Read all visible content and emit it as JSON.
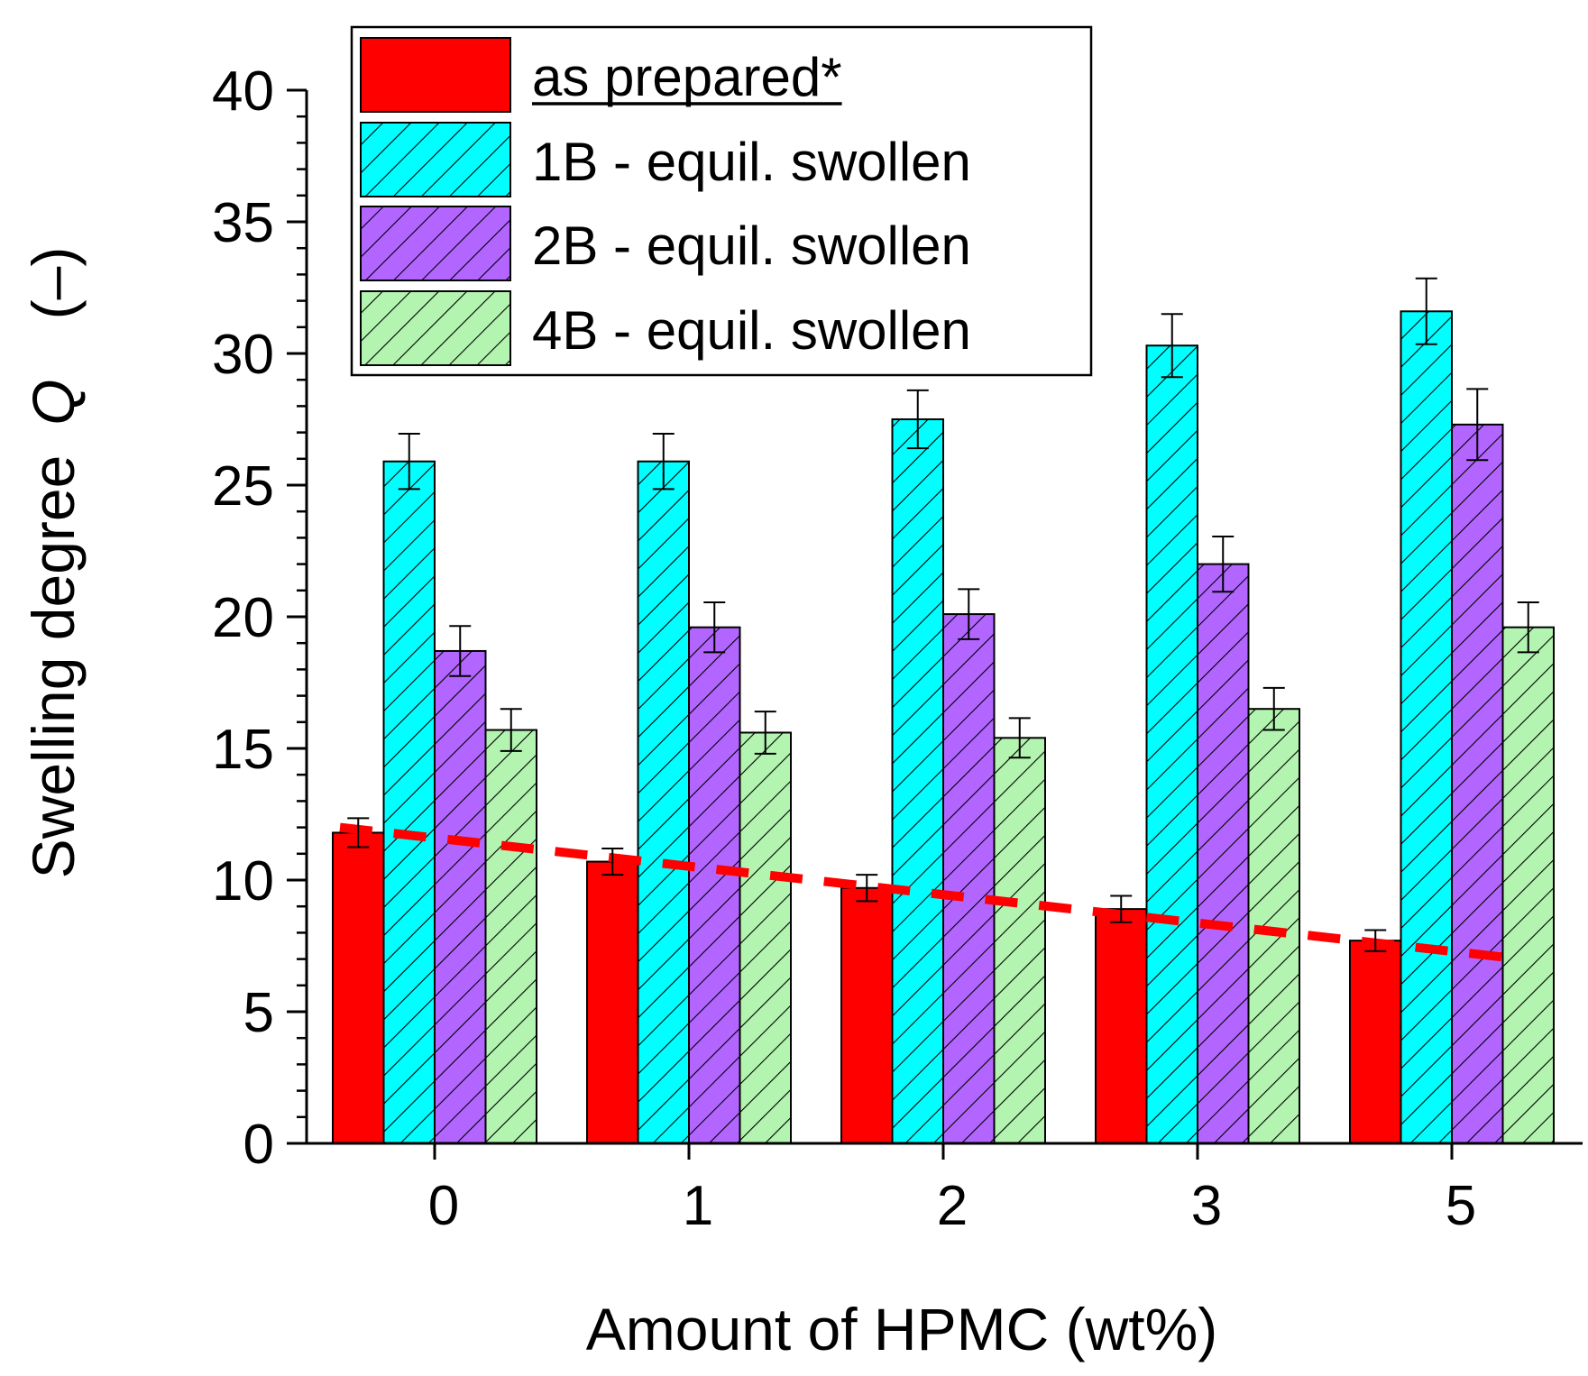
{
  "chart_data": {
    "type": "bar",
    "title": "",
    "xlabel": "Amount of HPMC (wt%)",
    "ylabel": "Swelling degree",
    "ylabel_symbol": "Q",
    "ylabel_unit": "(–)",
    "ylim": [
      0,
      40
    ],
    "yticks": [
      "0",
      "5",
      "10",
      "15",
      "20",
      "25",
      "30",
      "35",
      "40"
    ],
    "categories": [
      "0",
      "1",
      "2",
      "3",
      "5"
    ],
    "series": [
      {
        "name": "as prepared*",
        "color": "#ff0000",
        "hatch": false,
        "values": [
          11.8,
          10.7,
          9.7,
          8.9,
          7.7
        ],
        "errors": [
          0.55,
          0.5,
          0.5,
          0.5,
          0.4
        ]
      },
      {
        "name": "1B - equil. swollen",
        "color": "#00ffff",
        "hatch": true,
        "values": [
          25.9,
          25.9,
          27.5,
          30.3,
          31.6
        ],
        "errors": [
          1.05,
          1.05,
          1.1,
          1.2,
          1.25
        ]
      },
      {
        "name": "2B - equil. swollen",
        "color": "#b266ff",
        "hatch": true,
        "values": [
          18.7,
          19.6,
          20.1,
          22.0,
          27.3
        ],
        "errors": [
          0.95,
          0.95,
          0.95,
          1.05,
          1.35
        ]
      },
      {
        "name": "4B - equil. swollen",
        "color": "#b3f5b0",
        "hatch": true,
        "values": [
          15.7,
          15.6,
          15.4,
          16.5,
          19.6
        ],
        "errors": [
          0.8,
          0.8,
          0.75,
          0.8,
          0.95
        ]
      }
    ],
    "trendline": {
      "color": "#ff0000",
      "style": "dashed",
      "y_start": 12.0,
      "y_end": 7.0
    },
    "legend_position": "top"
  }
}
